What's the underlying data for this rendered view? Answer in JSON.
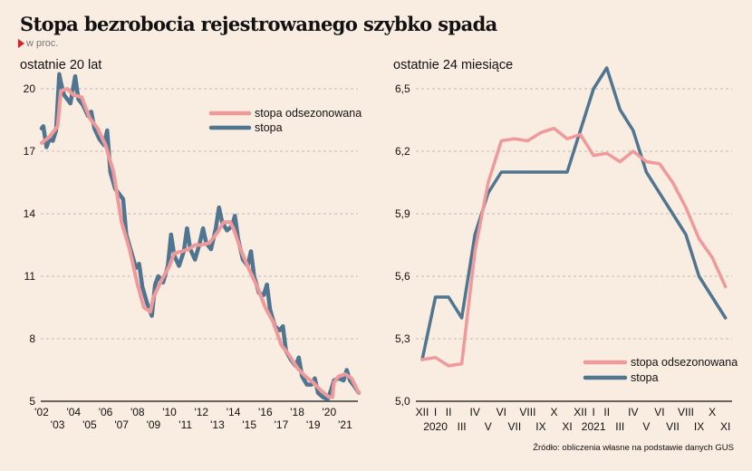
{
  "header": {
    "title": "Stopa bezrobocia rejestrowanego szybko spada",
    "unit": "w proc."
  },
  "source": "Źródło: obliczenia własne na podstawie danych GUS",
  "colors": {
    "stopa": "#4f7590",
    "stopa_odsezonowana": "#f0999a",
    "background": "#f9ece0",
    "accent": "#d2232a"
  },
  "chart_data": [
    {
      "type": "line",
      "subtitle": "ostatnie 20 lat",
      "xlabel": "",
      "ylabel": "",
      "ylim": [
        5,
        20
      ],
      "yticks": [
        "20",
        "17",
        "14",
        "11",
        "8",
        "5"
      ],
      "ytick_values": [
        20,
        17,
        14,
        11,
        8,
        5
      ],
      "xlim": [
        2002.0,
        2021.85
      ],
      "xticks_top": [
        "'02",
        "'04",
        "'06",
        "'08",
        "'10",
        "'12",
        "'14",
        "'16",
        "'18",
        "'20"
      ],
      "xticks_top_values": [
        2002,
        2004,
        2006,
        2008,
        2010,
        2012,
        2014,
        2016,
        2018,
        2020
      ],
      "xticks_bottom": [
        "'03",
        "'05",
        "'07",
        "'09",
        "'11",
        "'13",
        "'15",
        "'17",
        "'19",
        "'21"
      ],
      "xticks_bottom_values": [
        2003,
        2005,
        2007,
        2009,
        2011,
        2013,
        2015,
        2017,
        2019,
        2021
      ],
      "grid": true,
      "legend": "top-right",
      "series": [
        {
          "name": "stopa odsezonowana",
          "x": [
            2002.0,
            2002.5,
            2003.0,
            2003.2,
            2003.6,
            2004.0,
            2004.5,
            2005.0,
            2005.5,
            2006.0,
            2006.5,
            2007.0,
            2007.5,
            2008.0,
            2008.4,
            2008.8,
            2009.0,
            2009.5,
            2010.0,
            2010.3,
            2010.8,
            2011.2,
            2011.6,
            2012.0,
            2012.5,
            2013.0,
            2013.4,
            2013.8,
            2014.0,
            2014.5,
            2015.0,
            2015.5,
            2016.0,
            2016.5,
            2017.0,
            2017.5,
            2018.0,
            2018.5,
            2019.0,
            2019.5,
            2020.0,
            2020.2,
            2020.3,
            2020.6,
            2021.0,
            2021.4,
            2021.85
          ],
          "values": [
            17.4,
            17.7,
            18.2,
            19.9,
            20.0,
            19.7,
            19.6,
            18.6,
            18.1,
            17.3,
            16.0,
            13.6,
            12.3,
            10.6,
            9.5,
            9.3,
            10.0,
            10.8,
            11.5,
            12.1,
            12.2,
            12.3,
            12.5,
            12.5,
            12.6,
            13.1,
            13.6,
            13.6,
            13.3,
            12.2,
            11.3,
            10.5,
            9.5,
            8.8,
            7.7,
            7.2,
            6.6,
            6.2,
            5.9,
            5.5,
            5.2,
            5.2,
            5.9,
            6.2,
            6.3,
            6.1,
            5.4
          ]
        },
        {
          "name": "stopa",
          "x": [
            2002.0,
            2002.1,
            2002.3,
            2002.5,
            2002.7,
            2002.9,
            2003.1,
            2003.2,
            2003.4,
            2003.8,
            2004.1,
            2004.3,
            2004.6,
            2004.9,
            2005.1,
            2005.3,
            2005.6,
            2005.9,
            2006.1,
            2006.3,
            2006.6,
            2006.9,
            2007.1,
            2007.3,
            2007.6,
            2007.9,
            2008.1,
            2008.3,
            2008.6,
            2008.9,
            2009.1,
            2009.3,
            2009.6,
            2009.9,
            2010.1,
            2010.3,
            2010.6,
            2010.9,
            2011.1,
            2011.3,
            2011.6,
            2011.9,
            2012.1,
            2012.3,
            2012.6,
            2012.9,
            2013.1,
            2013.3,
            2013.6,
            2013.9,
            2014.1,
            2014.3,
            2014.6,
            2014.9,
            2015.1,
            2015.3,
            2015.6,
            2015.9,
            2016.1,
            2016.3,
            2016.6,
            2016.9,
            2017.1,
            2017.3,
            2017.6,
            2017.9,
            2018.1,
            2018.3,
            2018.6,
            2018.9,
            2019.1,
            2019.3,
            2019.6,
            2019.9,
            2020.1,
            2020.3,
            2020.6,
            2020.9,
            2021.1,
            2021.3,
            2021.6,
            2021.85
          ],
          "values": [
            18.1,
            18.2,
            17.2,
            17.6,
            17.5,
            18.0,
            20.7,
            20.3,
            19.7,
            19.3,
            20.6,
            19.5,
            19.2,
            18.7,
            18.9,
            18.1,
            17.6,
            17.3,
            18.0,
            16.0,
            15.2,
            14.9,
            14.7,
            13.0,
            12.2,
            11.4,
            11.6,
            10.5,
            9.7,
            9.1,
            10.6,
            11.0,
            10.7,
            11.5,
            13.0,
            12.0,
            11.5,
            12.2,
            13.3,
            12.3,
            11.8,
            12.6,
            13.3,
            12.6,
            12.3,
            13.3,
            14.3,
            13.6,
            13.2,
            13.4,
            13.9,
            12.8,
            11.8,
            11.5,
            12.2,
            11.0,
            10.2,
            10.1,
            10.6,
            9.4,
            8.6,
            8.4,
            8.6,
            7.4,
            7.0,
            6.7,
            7.1,
            6.2,
            5.8,
            5.8,
            6.1,
            5.4,
            5.2,
            5.1,
            5.5,
            6.0,
            6.1,
            6.0,
            6.5,
            6.0,
            5.7,
            5.4
          ]
        }
      ]
    },
    {
      "type": "line",
      "subtitle": "ostatnie 24 miesiące",
      "xlabel": "",
      "ylabel": "",
      "ylim": [
        5.0,
        6.5
      ],
      "yticks": [
        "6,5",
        "6,2",
        "5,9",
        "5,6",
        "5,3",
        "5,0"
      ],
      "ytick_values": [
        6.5,
        6.2,
        5.9,
        5.6,
        5.3,
        5.0
      ],
      "categories": [
        "XII",
        "I",
        "II",
        "III",
        "IV",
        "V",
        "VI",
        "VII",
        "VIII",
        "IX",
        "X",
        "XI",
        "XII",
        "I",
        "II",
        "III",
        "IV",
        "V",
        "VI",
        "VII",
        "VIII",
        "IX",
        "X",
        "XI"
      ],
      "xticks_top": [
        "XII",
        "I",
        "II",
        "IV",
        "VI",
        "VIII",
        "X",
        "XII",
        "I",
        "II",
        "IV",
        "VI",
        "VIII",
        "X"
      ],
      "xticks_top_index": [
        0,
        1,
        2,
        4,
        6,
        8,
        10,
        12,
        13,
        14,
        16,
        18,
        20,
        22
      ],
      "xticks_bottom": [
        "2020",
        "III",
        "V",
        "VII",
        "IX",
        "XI",
        "2021",
        "III",
        "V",
        "VII",
        "IX",
        "XI"
      ],
      "xticks_bottom_index": [
        1,
        3,
        5,
        7,
        9,
        11,
        13,
        15,
        17,
        19,
        21,
        23
      ],
      "grid": true,
      "legend": "bottom-right",
      "series": [
        {
          "name": "stopa odsezonowana",
          "values": [
            5.2,
            5.21,
            5.17,
            5.18,
            5.72,
            6.05,
            6.25,
            6.26,
            6.25,
            6.29,
            6.31,
            6.26,
            6.28,
            6.18,
            6.19,
            6.15,
            6.2,
            6.15,
            6.14,
            6.05,
            5.93,
            5.78,
            5.69,
            5.55
          ]
        },
        {
          "name": "stopa",
          "values": [
            5.2,
            5.5,
            5.5,
            5.4,
            5.8,
            6.0,
            6.1,
            6.1,
            6.1,
            6.1,
            6.1,
            6.1,
            6.3,
            6.5,
            6.6,
            6.4,
            6.3,
            6.1,
            6.0,
            5.9,
            5.8,
            5.6,
            5.5,
            5.4
          ]
        }
      ]
    }
  ]
}
